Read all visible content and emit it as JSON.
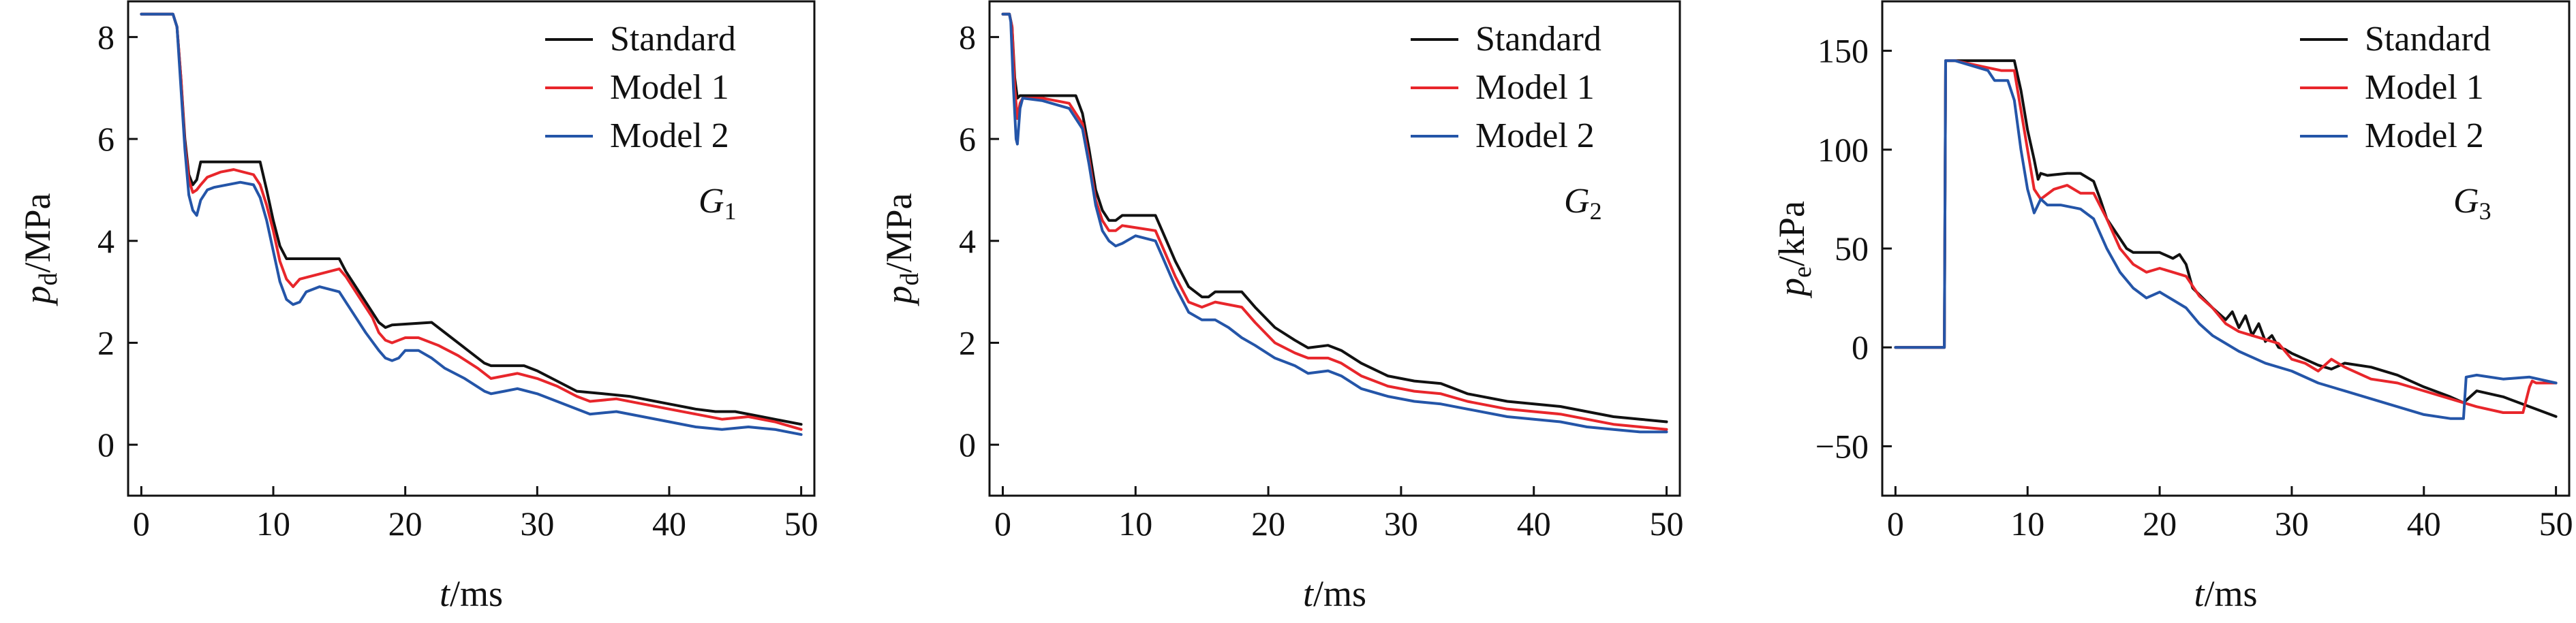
{
  "colors": {
    "Standard": "#111111",
    "Model 1": "#e8262b",
    "Model 2": "#2455a8"
  },
  "chart_data": [
    {
      "type": "line",
      "panel_label": {
        "base": "G",
        "sub": "1"
      },
      "xlabel": {
        "var": "t",
        "unit": "/ms"
      },
      "ylabel": {
        "var": "p",
        "sub": "d",
        "unit": "/MPa"
      },
      "xlim": [
        -1,
        51
      ],
      "ylim": [
        -1,
        8.7
      ],
      "xticks": [
        0,
        10,
        20,
        30,
        40,
        50
      ],
      "yticks": [
        0,
        2,
        4,
        6,
        8
      ],
      "legend": "top-right",
      "series": [
        {
          "name": "Standard",
          "x": [
            0,
            2.4,
            2.7,
            3.0,
            3.3,
            3.6,
            3.9,
            4.2,
            4.5,
            9.0,
            9.5,
            10.0,
            10.5,
            11.0,
            15.0,
            15.5,
            16.5,
            17.5,
            18.0,
            18.5,
            19.0,
            22.0,
            23.0,
            24.5,
            26.0,
            26.5,
            29.0,
            30.0,
            31.5,
            33.0,
            35.0,
            37.0,
            40.0,
            42.0,
            43.5,
            45.0,
            47.0,
            50.0
          ],
          "y": [
            8.45,
            8.45,
            8.2,
            7.2,
            6.0,
            5.3,
            5.1,
            5.2,
            5.55,
            5.55,
            5.0,
            4.4,
            3.9,
            3.65,
            3.65,
            3.4,
            3.0,
            2.6,
            2.4,
            2.3,
            2.35,
            2.4,
            2.2,
            1.9,
            1.6,
            1.55,
            1.55,
            1.45,
            1.25,
            1.05,
            1.0,
            0.95,
            0.8,
            0.7,
            0.65,
            0.65,
            0.55,
            0.4
          ]
        },
        {
          "name": "Model 1",
          "x": [
            0,
            2.4,
            2.7,
            3.0,
            3.3,
            3.6,
            3.9,
            4.2,
            4.5,
            5.0,
            6.0,
            7.0,
            8.5,
            9.0,
            9.5,
            10.0,
            10.5,
            11.0,
            11.5,
            12.0,
            15.0,
            15.5,
            16.5,
            17.5,
            18.0,
            18.5,
            19.0,
            19.5,
            20.0,
            21.0,
            22.5,
            24.0,
            25.5,
            26.5,
            27.5,
            28.5,
            30.0,
            31.5,
            33.0,
            34.0,
            36.0,
            38.0,
            40.0,
            42.0,
            44.0,
            46.0,
            48.0,
            50.0
          ],
          "y": [
            8.45,
            8.45,
            8.2,
            7.2,
            5.9,
            5.2,
            4.95,
            5.0,
            5.1,
            5.25,
            5.35,
            5.4,
            5.3,
            5.1,
            4.7,
            4.2,
            3.6,
            3.25,
            3.1,
            3.25,
            3.45,
            3.3,
            2.9,
            2.5,
            2.2,
            2.05,
            2.0,
            2.05,
            2.1,
            2.1,
            1.95,
            1.75,
            1.5,
            1.3,
            1.35,
            1.4,
            1.3,
            1.15,
            0.95,
            0.85,
            0.9,
            0.8,
            0.7,
            0.6,
            0.5,
            0.55,
            0.45,
            0.3
          ]
        },
        {
          "name": "Model 2",
          "x": [
            0,
            2.4,
            2.7,
            3.0,
            3.3,
            3.6,
            3.9,
            4.2,
            4.5,
            5.0,
            5.5,
            6.5,
            7.5,
            8.5,
            9.0,
            9.5,
            10.0,
            10.5,
            11.0,
            11.5,
            12.0,
            12.5,
            13.5,
            15.0,
            16.0,
            17.0,
            18.0,
            18.5,
            19.0,
            19.5,
            20.0,
            21.0,
            22.0,
            23.0,
            24.5,
            26.0,
            26.5,
            27.5,
            28.5,
            30.0,
            31.5,
            33.0,
            34.0,
            36.0,
            38.0,
            40.0,
            42.0,
            44.0,
            46.0,
            48.0,
            50.0
          ],
          "y": [
            8.45,
            8.45,
            8.2,
            7.0,
            5.8,
            4.9,
            4.6,
            4.5,
            4.8,
            5.0,
            5.05,
            5.1,
            5.15,
            5.1,
            4.85,
            4.4,
            3.8,
            3.2,
            2.85,
            2.75,
            2.8,
            3.0,
            3.1,
            3.0,
            2.6,
            2.2,
            1.85,
            1.7,
            1.65,
            1.7,
            1.85,
            1.85,
            1.7,
            1.5,
            1.3,
            1.05,
            1.0,
            1.05,
            1.1,
            1.0,
            0.85,
            0.7,
            0.6,
            0.65,
            0.55,
            0.45,
            0.35,
            0.3,
            0.35,
            0.3,
            0.2
          ]
        }
      ]
    },
    {
      "type": "line",
      "panel_label": {
        "base": "G",
        "sub": "2"
      },
      "xlabel": {
        "var": "t",
        "unit": "/ms"
      },
      "ylabel": {
        "var": "p",
        "sub": "d",
        "unit": "/MPa"
      },
      "xlim": [
        -1,
        51
      ],
      "ylim": [
        -1,
        8.7
      ],
      "xticks": [
        0,
        10,
        20,
        30,
        40,
        50
      ],
      "yticks": [
        0,
        2,
        4,
        6,
        8
      ],
      "legend": "top-right",
      "series": [
        {
          "name": "Standard",
          "x": [
            0,
            0.5,
            0.7,
            0.9,
            1.1,
            1.3,
            1.5,
            5.5,
            6.0,
            6.5,
            7.0,
            7.5,
            8.0,
            8.5,
            9.0,
            11.5,
            12.0,
            13.0,
            14.0,
            15.0,
            15.5,
            16.0,
            18.0,
            19.0,
            20.5,
            22.0,
            23.0,
            24.5,
            25.5,
            27.0,
            29.0,
            31.0,
            33.0,
            35.0,
            38.0,
            40.0,
            42.0,
            44.0,
            46.0,
            48.0,
            50.0
          ],
          "y": [
            8.45,
            8.45,
            8.2,
            7.2,
            6.8,
            6.85,
            6.85,
            6.85,
            6.5,
            5.8,
            5.0,
            4.6,
            4.4,
            4.4,
            4.5,
            4.5,
            4.2,
            3.6,
            3.1,
            2.9,
            2.9,
            3.0,
            3.0,
            2.7,
            2.3,
            2.05,
            1.9,
            1.95,
            1.85,
            1.6,
            1.35,
            1.25,
            1.2,
            1.0,
            0.85,
            0.8,
            0.75,
            0.65,
            0.55,
            0.5,
            0.45
          ]
        },
        {
          "name": "Model 1",
          "x": [
            0,
            0.5,
            0.7,
            0.9,
            1.1,
            1.3,
            1.5,
            3.0,
            5.0,
            6.0,
            6.5,
            7.0,
            7.5,
            8.0,
            8.5,
            9.0,
            11.5,
            12.0,
            13.0,
            14.0,
            15.0,
            16.0,
            18.0,
            19.0,
            20.5,
            22.0,
            23.0,
            24.5,
            25.5,
            27.0,
            29.0,
            31.0,
            33.0,
            35.0,
            38.0,
            40.0,
            42.0,
            44.0,
            46.0,
            48.0,
            50.0
          ],
          "y": [
            8.45,
            8.45,
            8.2,
            7.0,
            6.4,
            6.7,
            6.8,
            6.8,
            6.7,
            6.3,
            5.6,
            4.8,
            4.4,
            4.2,
            4.2,
            4.3,
            4.2,
            3.9,
            3.3,
            2.8,
            2.7,
            2.8,
            2.7,
            2.4,
            2.0,
            1.8,
            1.7,
            1.7,
            1.6,
            1.35,
            1.15,
            1.05,
            1.0,
            0.85,
            0.7,
            0.65,
            0.6,
            0.5,
            0.4,
            0.35,
            0.3
          ]
        },
        {
          "name": "Model 2",
          "x": [
            0,
            0.5,
            0.6,
            0.8,
            1.0,
            1.1,
            1.3,
            1.5,
            3.0,
            5.0,
            6.0,
            6.5,
            7.0,
            7.5,
            8.0,
            8.5,
            9.0,
            10.0,
            11.5,
            12.0,
            13.0,
            14.0,
            15.0,
            16.0,
            17.0,
            18.0,
            19.0,
            20.5,
            22.0,
            23.0,
            24.5,
            25.5,
            27.0,
            29.0,
            31.0,
            33.0,
            35.0,
            38.0,
            40.0,
            42.0,
            44.0,
            46.0,
            48.0,
            50.0
          ],
          "y": [
            8.45,
            8.45,
            8.3,
            7.0,
            6.0,
            5.9,
            6.6,
            6.8,
            6.75,
            6.6,
            6.2,
            5.5,
            4.7,
            4.2,
            4.0,
            3.9,
            3.95,
            4.1,
            4.0,
            3.7,
            3.1,
            2.6,
            2.45,
            2.45,
            2.3,
            2.1,
            1.95,
            1.7,
            1.55,
            1.4,
            1.45,
            1.35,
            1.1,
            0.95,
            0.85,
            0.8,
            0.7,
            0.55,
            0.5,
            0.45,
            0.35,
            0.3,
            0.25,
            0.25
          ]
        }
      ]
    },
    {
      "type": "line",
      "panel_label": {
        "base": "G",
        "sub": "3"
      },
      "xlabel": {
        "var": "t",
        "unit": "/ms"
      },
      "ylabel": {
        "var": "p",
        "sub": "e",
        "unit": "/kPa"
      },
      "xlim": [
        -1,
        51
      ],
      "ylim": [
        -75,
        175
      ],
      "xticks": [
        0,
        10,
        20,
        30,
        40,
        50
      ],
      "yticks": [
        -50,
        0,
        50,
        100,
        150
      ],
      "legend": "top-right",
      "series": [
        {
          "name": "Standard",
          "x": [
            0,
            3.7,
            3.8,
            4.5,
            9.0,
            9.5,
            10.0,
            10.5,
            10.8,
            11.0,
            11.5,
            13.0,
            14.0,
            15.0,
            15.5,
            16.0,
            17.0,
            17.5,
            18.0,
            20.0,
            21.0,
            21.5,
            22.0,
            22.5,
            24.0,
            25.0,
            25.5,
            26.0,
            26.5,
            27.0,
            27.5,
            28.0,
            28.5,
            29.0,
            29.5,
            30.0,
            31.0,
            32.0,
            33.0,
            34.0,
            36.0,
            38.0,
            40.0,
            42.0,
            43.0,
            44.0,
            46.0,
            48.0,
            50.0
          ],
          "y": [
            0,
            0,
            145,
            145,
            145,
            130,
            110,
            95,
            85,
            88,
            87,
            88,
            88,
            84,
            75,
            65,
            55,
            50,
            48,
            48,
            45,
            47,
            42,
            30,
            20,
            14,
            18,
            10,
            16,
            6,
            12,
            3,
            6,
            0,
            -1,
            -3,
            -6,
            -9,
            -11,
            -8,
            -10,
            -14,
            -20,
            -25,
            -28,
            -22,
            -25,
            -30,
            -35
          ]
        },
        {
          "name": "Model 1",
          "x": [
            0,
            3.7,
            3.8,
            4.5,
            8.0,
            9.0,
            9.5,
            10.0,
            10.5,
            11.0,
            12.0,
            13.0,
            14.0,
            15.0,
            16.0,
            17.0,
            18.0,
            19.0,
            20.0,
            21.0,
            22.0,
            23.0,
            24.0,
            25.0,
            26.0,
            27.0,
            28.0,
            29.0,
            30.0,
            31.0,
            32.0,
            33.0,
            34.0,
            36.0,
            38.0,
            40.0,
            42.0,
            44.0,
            46.0,
            47.5,
            48.0,
            48.2,
            48.5,
            50.0
          ],
          "y": [
            0,
            0,
            145,
            145,
            140,
            140,
            120,
            100,
            80,
            75,
            80,
            82,
            78,
            78,
            65,
            50,
            42,
            38,
            40,
            38,
            36,
            26,
            20,
            12,
            8,
            6,
            4,
            2,
            -6,
            -8,
            -12,
            -6,
            -10,
            -16,
            -18,
            -22,
            -26,
            -30,
            -33,
            -33,
            -20,
            -17,
            -18,
            -18
          ]
        },
        {
          "name": "Model 2",
          "x": [
            0,
            3.7,
            3.8,
            4.5,
            7.0,
            7.5,
            8.5,
            9.0,
            9.5,
            10.0,
            10.5,
            11.0,
            11.5,
            12.5,
            14.0,
            15.0,
            16.0,
            17.0,
            18.0,
            19.0,
            20.0,
            21.0,
            22.0,
            23.0,
            24.0,
            25.0,
            26.0,
            28.0,
            30.0,
            32.0,
            34.0,
            36.0,
            38.0,
            40.0,
            42.0,
            43.0,
            43.2,
            44.0,
            46.0,
            48.0,
            50.0
          ],
          "y": [
            0,
            0,
            145,
            145,
            140,
            135,
            135,
            125,
            100,
            80,
            68,
            75,
            72,
            72,
            70,
            65,
            50,
            38,
            30,
            25,
            28,
            24,
            20,
            12,
            6,
            2,
            -2,
            -8,
            -12,
            -18,
            -22,
            -26,
            -30,
            -34,
            -36,
            -36,
            -15,
            -14,
            -16,
            -15,
            -18
          ]
        }
      ]
    }
  ]
}
